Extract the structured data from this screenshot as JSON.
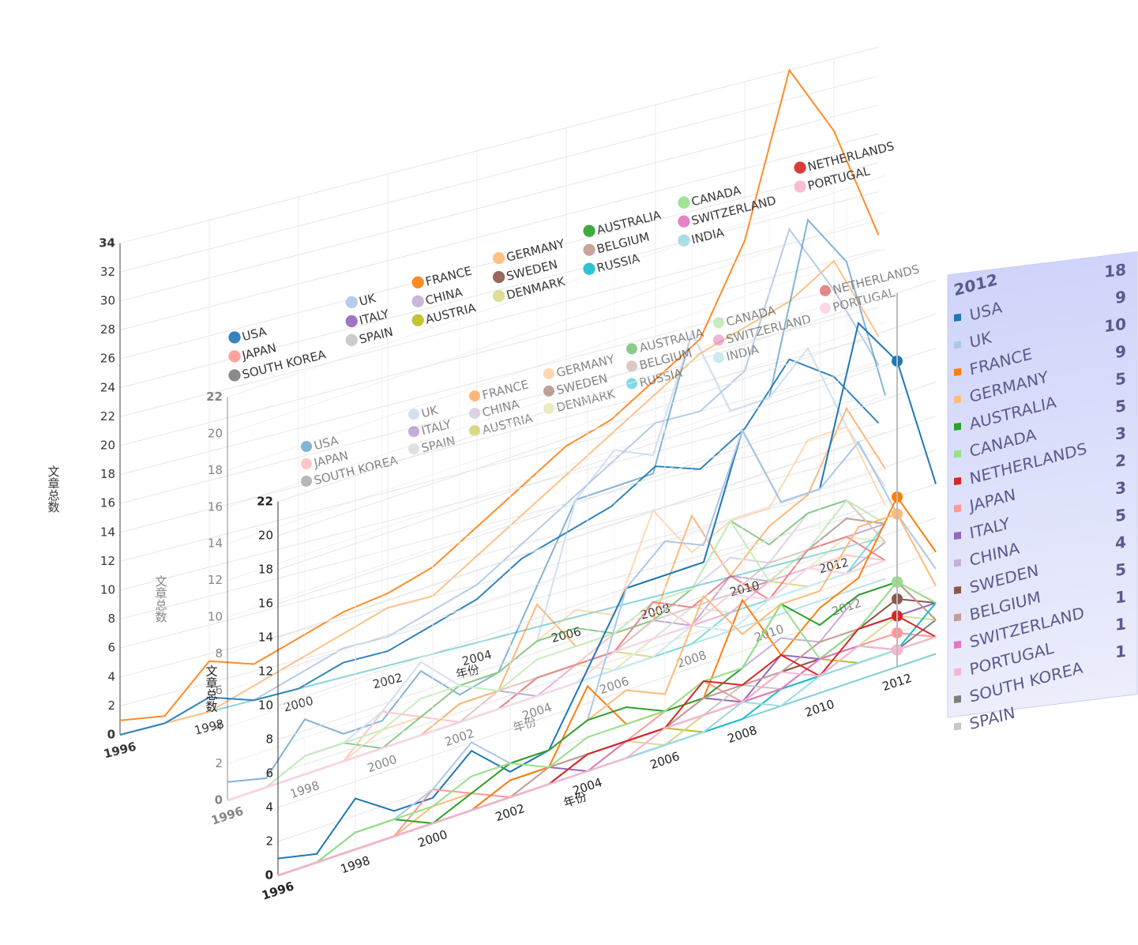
{
  "chart_data": [
    {
      "type": "line",
      "x_label": "年份",
      "y_label": "文章总数",
      "x": [
        1996,
        1997,
        1998,
        1999,
        2000,
        2001,
        2002,
        2003,
        2004,
        2005,
        2006,
        2007,
        2008,
        2009,
        2010,
        2011,
        2012,
        2013
      ],
      "xlim": [
        1996,
        2013
      ],
      "xticks": [
        1996,
        1998,
        2000,
        2002,
        2004,
        2006,
        2008,
        2010,
        2012
      ],
      "ylim": [
        0,
        34
      ],
      "yticks": [
        0,
        2,
        4,
        6,
        8,
        10,
        12,
        14,
        16,
        18,
        20,
        22,
        24,
        26,
        28,
        30,
        32,
        34
      ],
      "grid": true,
      "series": [
        {
          "name": "FRANCE",
          "color": "#ff7f0e",
          "values": [
            1,
            0.5,
            3.5,
            2.5,
            3.5,
            4.5,
            5,
            6,
            8,
            10,
            12,
            13,
            15,
            17,
            23,
            34,
            29,
            21
          ]
        },
        {
          "name": "GERMANY",
          "color": "#ffbb78",
          "values": [
            0,
            0,
            0,
            1,
            2,
            3,
            4,
            4,
            6,
            8,
            10,
            12,
            14,
            16,
            17,
            18,
            20,
            14
          ]
        },
        {
          "name": "UK",
          "color": "#aec7e8",
          "values": [
            0,
            0,
            1,
            0,
            1,
            2,
            2,
            3,
            4,
            6,
            8,
            10,
            12,
            12,
            14,
            23,
            18,
            12
          ]
        },
        {
          "name": "USA",
          "color": "#1f77b4",
          "values": [
            0,
            0,
            1,
            0,
            0,
            1,
            1,
            2,
            3,
            5,
            6,
            7,
            9,
            8,
            10,
            14,
            12,
            8
          ]
        }
      ]
    },
    {
      "type": "line",
      "x_label": "年份",
      "y_label": "文章总数",
      "x": [
        1996,
        1997,
        1998,
        1999,
        2000,
        2001,
        2002,
        2003,
        2004,
        2005,
        2006,
        2007,
        2008,
        2009,
        2010,
        2011,
        2012,
        2013
      ],
      "xlim": [
        1996,
        2013
      ],
      "xticks": [
        1996,
        1998,
        2000,
        2002,
        2004,
        2006,
        2008,
        2010,
        2012
      ],
      "ylim": [
        0,
        22
      ],
      "yticks": [
        0,
        2,
        4,
        6,
        8,
        10,
        12,
        14,
        16,
        18,
        20,
        22
      ],
      "grid": true,
      "series": [
        {
          "name": "USA",
          "color": "#1f77b4",
          "values": [
            1,
            0.5,
            3,
            1.5,
            1.5,
            3.5,
            1.5,
            2,
            6,
            10,
            10,
            10,
            17,
            12,
            12,
            21,
            18,
            10
          ]
        },
        {
          "name": "JAPAN",
          "color": "#ff9896",
          "values": [
            0,
            0,
            0,
            0,
            2,
            1,
            0,
            0,
            1,
            1,
            2,
            3,
            1,
            2,
            2,
            2,
            2,
            1
          ]
        },
        {
          "name": "SOUTH KOREA",
          "color": "#7f7f7f",
          "values": [
            0,
            0,
            0,
            0,
            0,
            0,
            0,
            0,
            0,
            0,
            0,
            1,
            1,
            1,
            1,
            2,
            1,
            2
          ]
        },
        {
          "name": "UK",
          "color": "#aec7e8",
          "values": [
            0,
            0,
            1,
            1,
            2,
            4,
            2,
            2,
            3,
            10,
            12,
            11,
            17,
            12,
            12,
            14,
            9,
            5
          ]
        },
        {
          "name": "ITALY",
          "color": "#9467bd",
          "values": [
            0,
            0,
            0,
            0,
            0,
            0,
            1,
            1,
            0,
            1,
            1,
            2,
            1,
            3,
            2,
            3,
            3,
            3
          ]
        },
        {
          "name": "SPAIN",
          "color": "#c7c7c7",
          "values": [
            0,
            0,
            0,
            0,
            0,
            0,
            0,
            0,
            1,
            1,
            1,
            1,
            2,
            1,
            2,
            2,
            1,
            1
          ]
        },
        {
          "name": "FRANCE",
          "color": "#ff7f0e",
          "values": [
            0,
            0,
            0,
            0,
            0,
            0,
            1,
            1,
            5,
            2,
            2,
            2,
            7,
            3,
            5,
            6,
            10,
            6
          ]
        },
        {
          "name": "CHINA",
          "color": "#c5b0d5",
          "values": [
            0,
            0,
            0,
            0,
            0,
            0,
            0,
            1,
            1,
            1,
            1,
            2,
            3,
            4,
            3,
            5,
            5,
            3
          ]
        },
        {
          "name": "AUSTRIA",
          "color": "#bcbd22",
          "values": [
            0,
            0,
            0,
            0,
            0,
            0,
            0,
            0,
            0,
            0,
            1,
            0,
            1,
            1,
            2,
            1,
            1,
            1
          ]
        },
        {
          "name": "GERMANY",
          "color": "#ffbb78",
          "values": [
            0,
            0,
            0,
            0,
            1,
            1,
            2,
            2,
            3,
            4,
            3,
            8,
            5,
            6,
            6,
            9,
            9,
            4
          ]
        },
        {
          "name": "SWEDEN",
          "color": "#8c564b",
          "values": [
            0,
            0,
            0,
            0,
            0,
            0,
            0,
            0,
            1,
            1,
            1,
            1,
            1,
            2,
            2,
            3,
            4,
            3
          ]
        },
        {
          "name": "DENMARK",
          "color": "#dbdb8d",
          "values": [
            0,
            0,
            0,
            0,
            0,
            0,
            0,
            0,
            0,
            1,
            0,
            1,
            1,
            1,
            2,
            2,
            3,
            2
          ]
        },
        {
          "name": "AUSTRALIA",
          "color": "#2ca02c",
          "values": [
            0,
            0,
            1,
            1,
            0,
            1,
            2,
            2,
            3,
            3,
            2,
            2,
            3,
            6,
            4,
            5,
            5,
            2
          ]
        },
        {
          "name": "BELGIUM",
          "color": "#c49c94",
          "values": [
            0,
            0,
            0,
            0,
            0,
            0,
            0,
            1,
            1,
            1,
            1,
            2,
            2,
            2,
            3,
            3,
            5,
            2
          ]
        },
        {
          "name": "RUSSIA",
          "color": "#17becf",
          "values": [
            0,
            0,
            0,
            0,
            0,
            0,
            0,
            0,
            0,
            0,
            0,
            0,
            0,
            1,
            1,
            1,
            1,
            3
          ]
        },
        {
          "name": "CANADA",
          "color": "#98df8a",
          "values": [
            0,
            0,
            1,
            1,
            1,
            2,
            2,
            1,
            2,
            2,
            2,
            3,
            3,
            6,
            2,
            3,
            5,
            3
          ]
        },
        {
          "name": "SWITZERLAND",
          "color": "#e377c2",
          "values": [
            0,
            0,
            0,
            0,
            0,
            0,
            0,
            0,
            0,
            1,
            1,
            1,
            1,
            1,
            2,
            2,
            1,
            1
          ]
        },
        {
          "name": "INDIA",
          "color": "#9edae5",
          "values": [
            0,
            0,
            0,
            0,
            0,
            0,
            0,
            0,
            0,
            0,
            0,
            0,
            1,
            0,
            1,
            1,
            1,
            1
          ]
        },
        {
          "name": "NETHERLANDS",
          "color": "#d62728",
          "values": [
            0,
            0,
            0,
            0,
            0,
            0,
            0,
            0,
            1,
            1,
            1,
            3,
            2,
            3,
            1,
            3,
            3,
            1
          ]
        },
        {
          "name": "PORTUGAL",
          "color": "#f7b6d2",
          "values": [
            0,
            0,
            0,
            0,
            0,
            0,
            0,
            0,
            0,
            0,
            1,
            1,
            1,
            2,
            1,
            2,
            1,
            1
          ]
        }
      ]
    }
  ],
  "tooltip": {
    "title": "2012",
    "rows": [
      {
        "name": "USA",
        "value": 18,
        "color": "#1f77b4"
      },
      {
        "name": "UK",
        "value": 9,
        "color": "#aec7e8"
      },
      {
        "name": "FRANCE",
        "value": 10,
        "color": "#ff7f0e"
      },
      {
        "name": "GERMANY",
        "value": 9,
        "color": "#ffbb78"
      },
      {
        "name": "AUSTRALIA",
        "value": 5,
        "color": "#2ca02c"
      },
      {
        "name": "CANADA",
        "value": 5,
        "color": "#98df8a"
      },
      {
        "name": "NETHERLANDS",
        "value": 3,
        "color": "#d62728"
      },
      {
        "name": "JAPAN",
        "value": 2,
        "color": "#ff9896"
      },
      {
        "name": "ITALY",
        "value": 3,
        "color": "#9467bd"
      },
      {
        "name": "CHINA",
        "value": 5,
        "color": "#c5b0d5"
      },
      {
        "name": "SWEDEN",
        "value": 4,
        "color": "#8c564b"
      },
      {
        "name": "BELGIUM",
        "value": 5,
        "color": "#c49c94"
      },
      {
        "name": "SWITZERLAND",
        "value": 1,
        "color": "#e377c2"
      },
      {
        "name": "PORTUGAL",
        "value": 1,
        "color": "#f7b6d2"
      },
      {
        "name": "SOUTH KOREA",
        "value": 1,
        "color": "#7f7f7f"
      },
      {
        "name": "SPAIN",
        "value": null,
        "color": "#c7c7c7"
      }
    ]
  }
}
